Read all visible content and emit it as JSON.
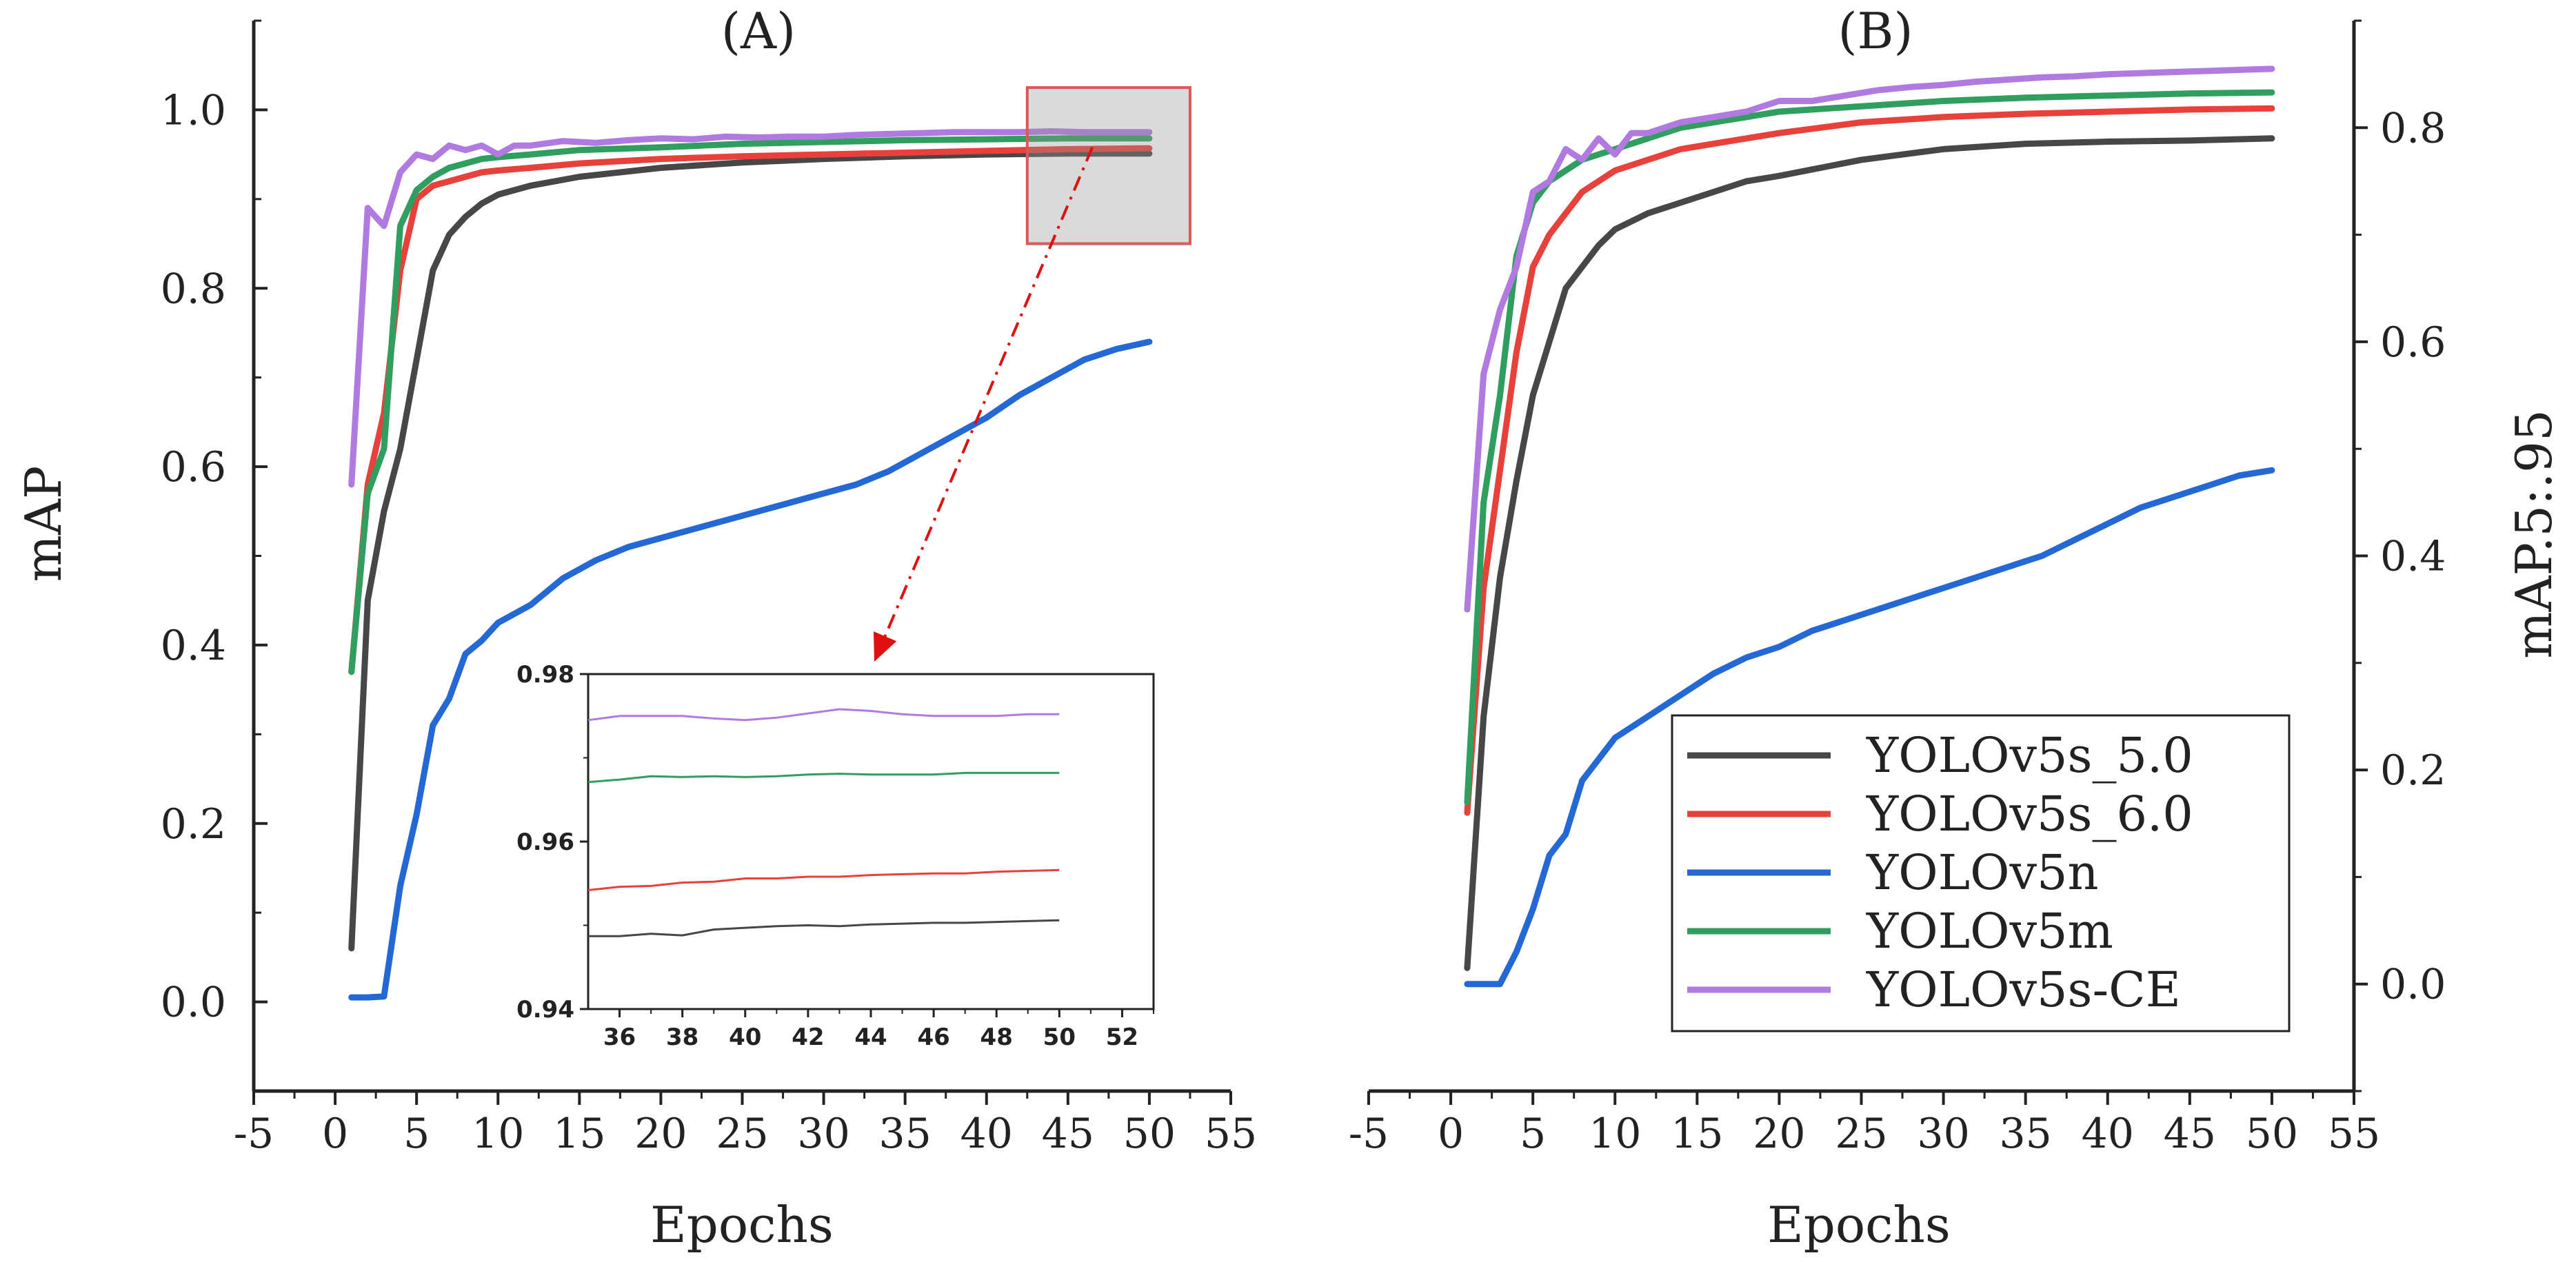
{
  "chart_data": [
    {
      "type": "line",
      "panel_title": "(A)",
      "xlabel": "Epochs",
      "ylabel": "mAP",
      "xlim": [
        -5,
        55
      ],
      "ylim": [
        -0.1,
        1.1
      ],
      "xticks": [
        "-5",
        "0",
        "5",
        "10",
        "15",
        "20",
        "25",
        "30",
        "35",
        "40",
        "45",
        "50",
        "55"
      ],
      "yticks": [
        "0.0",
        "0.2",
        "0.4",
        "0.6",
        "0.8",
        "1.0"
      ],
      "grid": false,
      "series": [
        {
          "name": "YOLOv5s_5.0",
          "color": "#474747",
          "x": [
            1,
            2,
            3,
            4,
            5,
            6,
            7,
            8,
            9,
            10,
            12,
            15,
            20,
            25,
            30,
            35,
            40,
            45,
            50
          ],
          "y": [
            0.06,
            0.45,
            0.55,
            0.62,
            0.72,
            0.82,
            0.86,
            0.88,
            0.895,
            0.905,
            0.915,
            0.925,
            0.935,
            0.941,
            0.945,
            0.948,
            0.95,
            0.951,
            0.951
          ]
        },
        {
          "name": "YOLOv5s_6.0",
          "color": "#e8403a",
          "x": [
            1,
            2,
            3,
            4,
            5,
            6,
            7,
            8,
            9,
            10,
            12,
            15,
            20,
            25,
            30,
            35,
            40,
            45,
            50
          ],
          "y": [
            0.37,
            0.58,
            0.66,
            0.82,
            0.9,
            0.915,
            0.92,
            0.925,
            0.93,
            0.932,
            0.935,
            0.94,
            0.945,
            0.948,
            0.95,
            0.952,
            0.954,
            0.956,
            0.957
          ]
        },
        {
          "name": "YOLOv5n",
          "color": "#2468d6",
          "x": [
            1,
            2,
            3,
            4,
            5,
            6,
            7,
            8,
            9,
            10,
            12,
            14,
            16,
            18,
            20,
            22,
            24,
            26,
            28,
            30,
            32,
            34,
            36,
            38,
            40,
            42,
            44,
            46,
            48,
            50
          ],
          "y": [
            0.005,
            0.005,
            0.006,
            0.13,
            0.21,
            0.31,
            0.34,
            0.39,
            0.405,
            0.425,
            0.445,
            0.475,
            0.495,
            0.51,
            0.52,
            0.53,
            0.54,
            0.55,
            0.56,
            0.57,
            0.58,
            0.595,
            0.615,
            0.635,
            0.655,
            0.68,
            0.7,
            0.72,
            0.732,
            0.74
          ]
        },
        {
          "name": "YOLOv5m",
          "color": "#2f9e5e",
          "x": [
            1,
            2,
            3,
            4,
            5,
            6,
            7,
            8,
            9,
            10,
            12,
            15,
            20,
            25,
            30,
            35,
            40,
            45,
            50
          ],
          "y": [
            0.37,
            0.57,
            0.62,
            0.87,
            0.91,
            0.925,
            0.935,
            0.94,
            0.945,
            0.947,
            0.95,
            0.955,
            0.958,
            0.962,
            0.964,
            0.966,
            0.967,
            0.968,
            0.968
          ]
        },
        {
          "name": "YOLOv5s-CE",
          "color": "#b07ae0",
          "x": [
            1,
            2,
            3,
            4,
            5,
            6,
            7,
            8,
            9,
            10,
            11,
            12,
            14,
            16,
            18,
            20,
            22,
            24,
            26,
            28,
            30,
            32,
            34,
            36,
            38,
            40,
            42,
            44,
            46,
            48,
            50
          ],
          "y": [
            0.58,
            0.89,
            0.87,
            0.93,
            0.95,
            0.945,
            0.96,
            0.955,
            0.96,
            0.95,
            0.96,
            0.96,
            0.965,
            0.963,
            0.966,
            0.968,
            0.967,
            0.97,
            0.969,
            0.97,
            0.97,
            0.972,
            0.973,
            0.974,
            0.975,
            0.975,
            0.975,
            0.976,
            0.975,
            0.975,
            0.975
          ]
        }
      ],
      "zoom_box": {
        "x": [
          42.5,
          52.5
        ],
        "y": [
          0.85,
          1.025
        ]
      },
      "inset": {
        "xlim": [
          35,
          53
        ],
        "ylim": [
          0.94,
          0.98
        ],
        "xticks": [
          "36",
          "38",
          "40",
          "42",
          "44",
          "46",
          "48",
          "50",
          "52"
        ],
        "yticks": [
          "0.94",
          "0.96",
          "0.98"
        ],
        "series": [
          {
            "name": "YOLOv5s_5.0",
            "color": "#474747",
            "x": [
              35,
              36,
              37,
              38,
              39,
              40,
              41,
              42,
              43,
              44,
              45,
              46,
              47,
              48,
              49,
              50
            ],
            "y": [
              0.9487,
              0.9487,
              0.949,
              0.9488,
              0.9495,
              0.9497,
              0.9499,
              0.95,
              0.9499,
              0.9501,
              0.9502,
              0.9503,
              0.9503,
              0.9504,
              0.9505,
              0.9506
            ]
          },
          {
            "name": "YOLOv5s_6.0",
            "color": "#e8403a",
            "x": [
              35,
              36,
              37,
              38,
              39,
              40,
              41,
              42,
              43,
              44,
              45,
              46,
              47,
              48,
              49,
              50
            ],
            "y": [
              0.9542,
              0.9546,
              0.9547,
              0.9551,
              0.9552,
              0.9556,
              0.9556,
              0.9558,
              0.9558,
              0.956,
              0.9561,
              0.9562,
              0.9562,
              0.9564,
              0.9565,
              0.9566
            ]
          },
          {
            "name": "YOLOv5m",
            "color": "#2f9e5e",
            "x": [
              35,
              36,
              37,
              38,
              39,
              40,
              41,
              42,
              43,
              44,
              45,
              46,
              47,
              48,
              49,
              50
            ],
            "y": [
              0.9671,
              0.9674,
              0.9678,
              0.9677,
              0.9678,
              0.9677,
              0.9678,
              0.968,
              0.9681,
              0.968,
              0.968,
              0.968,
              0.9682,
              0.9682,
              0.9682,
              0.9682
            ]
          },
          {
            "name": "YOLOv5s-CE",
            "color": "#b07ae0",
            "x": [
              35,
              36,
              37,
              38,
              39,
              40,
              41,
              42,
              43,
              44,
              45,
              46,
              47,
              48,
              49,
              50
            ],
            "y": [
              0.9745,
              0.975,
              0.975,
              0.975,
              0.9747,
              0.9745,
              0.9748,
              0.9753,
              0.9758,
              0.9756,
              0.9752,
              0.975,
              0.975,
              0.975,
              0.9752,
              0.9752
            ]
          }
        ]
      }
    },
    {
      "type": "line",
      "panel_title": "(B)",
      "xlabel": "Epochs",
      "ylabel": "mAP.5:.95",
      "xlim": [
        -5,
        55
      ],
      "ylim": [
        -0.1,
        0.9
      ],
      "xticks": [
        "-5",
        "0",
        "5",
        "10",
        "15",
        "20",
        "25",
        "30",
        "35",
        "40",
        "45",
        "50",
        "55"
      ],
      "yticks": [
        "0.0",
        "0.2",
        "0.4",
        "0.6",
        "0.8"
      ],
      "grid": false,
      "series": [
        {
          "name": "YOLOv5s_5.0",
          "color": "#474747",
          "x": [
            1,
            2,
            3,
            4,
            5,
            6,
            7,
            8,
            9,
            10,
            12,
            14,
            16,
            18,
            20,
            25,
            30,
            35,
            40,
            45,
            50
          ],
          "y": [
            0.015,
            0.25,
            0.38,
            0.47,
            0.55,
            0.6,
            0.65,
            0.67,
            0.69,
            0.705,
            0.72,
            0.73,
            0.74,
            0.75,
            0.755,
            0.77,
            0.78,
            0.785,
            0.787,
            0.788,
            0.79
          ]
        },
        {
          "name": "YOLOv5s_6.0",
          "color": "#e8403a",
          "x": [
            1,
            2,
            3,
            4,
            5,
            6,
            7,
            8,
            9,
            10,
            12,
            14,
            16,
            18,
            20,
            25,
            30,
            35,
            40,
            45,
            50
          ],
          "y": [
            0.16,
            0.37,
            0.48,
            0.59,
            0.67,
            0.7,
            0.72,
            0.74,
            0.75,
            0.76,
            0.77,
            0.78,
            0.785,
            0.79,
            0.795,
            0.805,
            0.81,
            0.813,
            0.815,
            0.817,
            0.818
          ]
        },
        {
          "name": "YOLOv5n",
          "color": "#2468d6",
          "x": [
            1,
            2,
            3,
            4,
            5,
            6,
            7,
            8,
            9,
            10,
            12,
            14,
            16,
            18,
            20,
            22,
            24,
            26,
            28,
            30,
            32,
            34,
            36,
            38,
            40,
            42,
            44,
            46,
            48,
            50
          ],
          "y": [
            0.0,
            0.0,
            0.0,
            0.03,
            0.07,
            0.12,
            0.14,
            0.19,
            0.21,
            0.23,
            0.25,
            0.27,
            0.29,
            0.305,
            0.315,
            0.33,
            0.34,
            0.35,
            0.36,
            0.37,
            0.38,
            0.39,
            0.4,
            0.415,
            0.43,
            0.445,
            0.455,
            0.465,
            0.475,
            0.48
          ]
        },
        {
          "name": "YOLOv5m",
          "color": "#2f9e5e",
          "x": [
            1,
            2,
            3,
            4,
            5,
            6,
            7,
            8,
            9,
            10,
            12,
            14,
            16,
            18,
            20,
            25,
            30,
            35,
            40,
            45,
            50
          ],
          "y": [
            0.17,
            0.45,
            0.55,
            0.68,
            0.73,
            0.75,
            0.76,
            0.77,
            0.775,
            0.78,
            0.79,
            0.8,
            0.805,
            0.81,
            0.815,
            0.82,
            0.825,
            0.828,
            0.83,
            0.832,
            0.833
          ]
        },
        {
          "name": "YOLOv5s-CE",
          "color": "#b07ae0",
          "x": [
            1,
            2,
            3,
            4,
            5,
            6,
            7,
            8,
            9,
            10,
            11,
            12,
            14,
            16,
            18,
            20,
            22,
            24,
            26,
            28,
            30,
            32,
            34,
            36,
            38,
            40,
            42,
            44,
            46,
            48,
            50
          ],
          "y": [
            0.35,
            0.57,
            0.63,
            0.67,
            0.74,
            0.75,
            0.78,
            0.77,
            0.79,
            0.775,
            0.795,
            0.795,
            0.805,
            0.81,
            0.815,
            0.825,
            0.825,
            0.83,
            0.835,
            0.838,
            0.84,
            0.843,
            0.845,
            0.847,
            0.848,
            0.85,
            0.851,
            0.852,
            0.853,
            0.854,
            0.855
          ]
        }
      ],
      "legend": {
        "position": "lower-right",
        "entries": [
          {
            "label": "YOLOv5s_5.0",
            "color": "#474747"
          },
          {
            "label": "YOLOv5s_6.0",
            "color": "#e8403a"
          },
          {
            "label": "YOLOv5n",
            "color": "#2468d6"
          },
          {
            "label": "YOLOv5m",
            "color": "#2f9e5e"
          },
          {
            "label": "YOLOv5s-CE",
            "color": "#b07ae0"
          }
        ]
      }
    }
  ]
}
